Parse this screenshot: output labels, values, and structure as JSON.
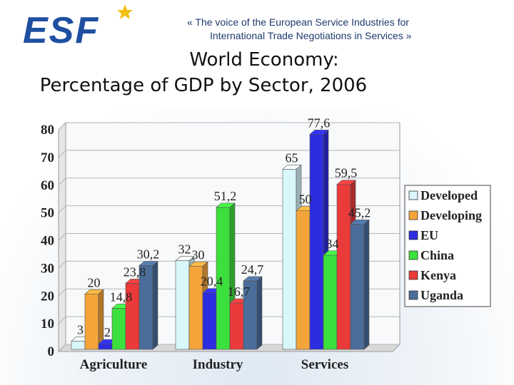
{
  "header": {
    "logo_text": "ESF",
    "tagline_line1": "«  The voice of the European Service Industries for",
    "tagline_line2": "International Trade Negotiations in Services  »"
  },
  "title_line1": "World Economy:",
  "title_line2": "Percentage of GDP by Sector, 2006",
  "colors": {
    "developed": "#d9f6fb",
    "developing": "#f4a53a",
    "eu": "#2c2ce0",
    "china": "#3ce03c",
    "kenya": "#ea3a3a",
    "uganda": "#4a6d9a",
    "brand_blue": "#1f4fa0",
    "star": "#f2c014"
  },
  "chart_data": {
    "type": "bar",
    "title": "Percentage of GDP by Sector, 2006",
    "xlabel": "",
    "ylabel": "",
    "ylim": [
      0,
      80
    ],
    "yticks": [
      0,
      10,
      20,
      30,
      40,
      50,
      60,
      70,
      80
    ],
    "categories": [
      "Agriculture",
      "Industry",
      "Services"
    ],
    "series": [
      {
        "name": "Developed",
        "color": "#d9f6fb",
        "values": [
          3,
          32,
          65
        ],
        "labels": [
          "3",
          "32",
          "65"
        ]
      },
      {
        "name": "Developing",
        "color": "#f4a53a",
        "values": [
          20,
          30,
          50
        ],
        "labels": [
          "20",
          "30",
          "50"
        ]
      },
      {
        "name": "EU",
        "color": "#2c2ce0",
        "values": [
          2,
          20.4,
          77.6
        ],
        "labels": [
          "2",
          "20,4",
          "77,6"
        ]
      },
      {
        "name": "China",
        "color": "#3ce03c",
        "values": [
          14.8,
          51.2,
          34
        ],
        "labels": [
          "14,8",
          "51,2",
          "34"
        ]
      },
      {
        "name": "Kenya",
        "color": "#ea3a3a",
        "values": [
          23.8,
          16.7,
          59.5
        ],
        "labels": [
          "23,8",
          "16,7",
          "59,5"
        ]
      },
      {
        "name": "Uganda",
        "color": "#4a6d9a",
        "values": [
          30.2,
          24.7,
          45.2
        ],
        "labels": [
          "30,2",
          "24,7",
          "45,2"
        ]
      }
    ],
    "grid": true,
    "legend_position": "right"
  }
}
